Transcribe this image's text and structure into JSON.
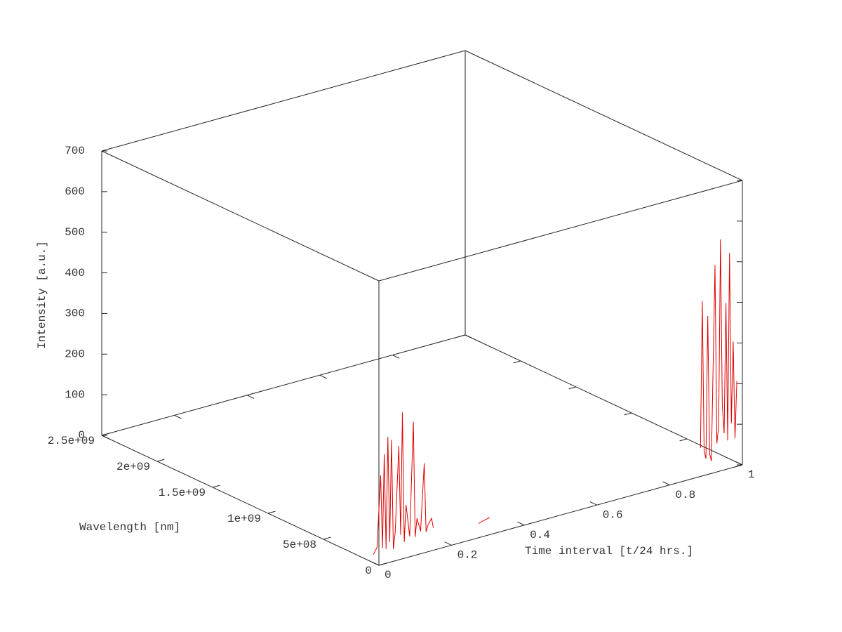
{
  "chart_data": {
    "type": "line3d",
    "xlabel": "Time interval [t/24 hrs.]",
    "ylabel": "Wavelength [nm]",
    "zlabel": "Intensity [a.u.]",
    "xlim": [
      0,
      1
    ],
    "xticks": [
      0,
      0.2,
      0.4,
      0.6,
      0.8,
      1
    ],
    "ylim": [
      0,
      2500000000
    ],
    "yticks": [
      0,
      {
        "value": 500000000,
        "label": "5e+08"
      },
      {
        "value": 1000000000,
        "label": "1e+09"
      },
      {
        "value": 1500000000,
        "label": "1.5e+09"
      },
      {
        "value": 2000000000,
        "label": "2e+09"
      },
      {
        "value": 2500000000,
        "label": "2.5e+09"
      }
    ],
    "zlim": [
      0,
      700
    ],
    "zticks": [
      0,
      100,
      200,
      300,
      400,
      500,
      600,
      700
    ],
    "series": [
      {
        "color": "#e00000",
        "x": [
          0.0,
          0.01,
          0.02,
          0.025,
          0.03,
          0.035,
          0.04,
          0.045,
          0.05,
          0.055,
          0.06,
          0.07,
          0.075,
          0.08,
          0.085,
          0.09,
          0.1,
          0.11,
          0.115,
          0.12,
          0.13,
          0.14,
          0.145,
          0.15,
          0.16,
          0.165,
          null,
          0.29,
          0.3,
          0.31,
          0.32,
          null,
          0.9,
          0.905,
          0.91,
          0.915,
          0.92,
          0.925,
          0.93,
          0.94,
          0.945,
          0.95,
          0.955,
          0.96,
          0.965,
          0.97,
          0.975,
          0.98,
          0.985,
          0.99,
          0.995,
          1.0
        ],
        "y": [
          50000000,
          50000000,
          50000000,
          50000000,
          50000000,
          50000000,
          50000000,
          50000000,
          50000000,
          50000000,
          50000000,
          50000000,
          50000000,
          50000000,
          50000000,
          50000000,
          50000000,
          50000000,
          50000000,
          50000000,
          50000000,
          50000000,
          50000000,
          50000000,
          50000000,
          50000000,
          null,
          50000000,
          50000000,
          50000000,
          50000000,
          null,
          50000000,
          50000000,
          50000000,
          50000000,
          50000000,
          50000000,
          50000000,
          50000000,
          50000000,
          50000000,
          50000000,
          50000000,
          50000000,
          50000000,
          50000000,
          50000000,
          50000000,
          50000000,
          50000000,
          50000000
        ],
        "z": [
          20,
          35,
          210,
          30,
          260,
          25,
          300,
          40,
          290,
          20,
          60,
          270,
          50,
          350,
          30,
          120,
          40,
          320,
          35,
          80,
          45,
          210,
          40,
          55,
          70,
          45,
          null,
          25,
          28,
          30,
          32,
          null,
          60,
          420,
          50,
          30,
          380,
          40,
          20,
          500,
          60,
          100,
          560,
          150,
          80,
          400,
          60,
          520,
          100,
          300,
          60,
          200
        ]
      }
    ]
  }
}
